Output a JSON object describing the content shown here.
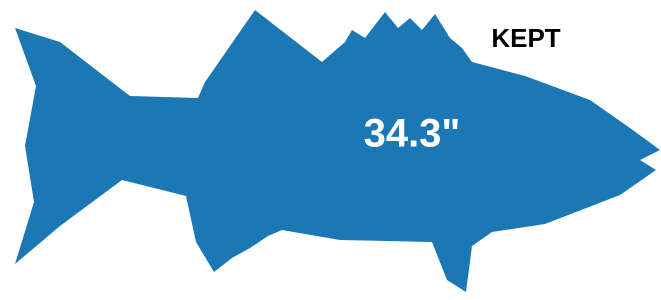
{
  "label": "KEPT",
  "length": "34.3\""
}
